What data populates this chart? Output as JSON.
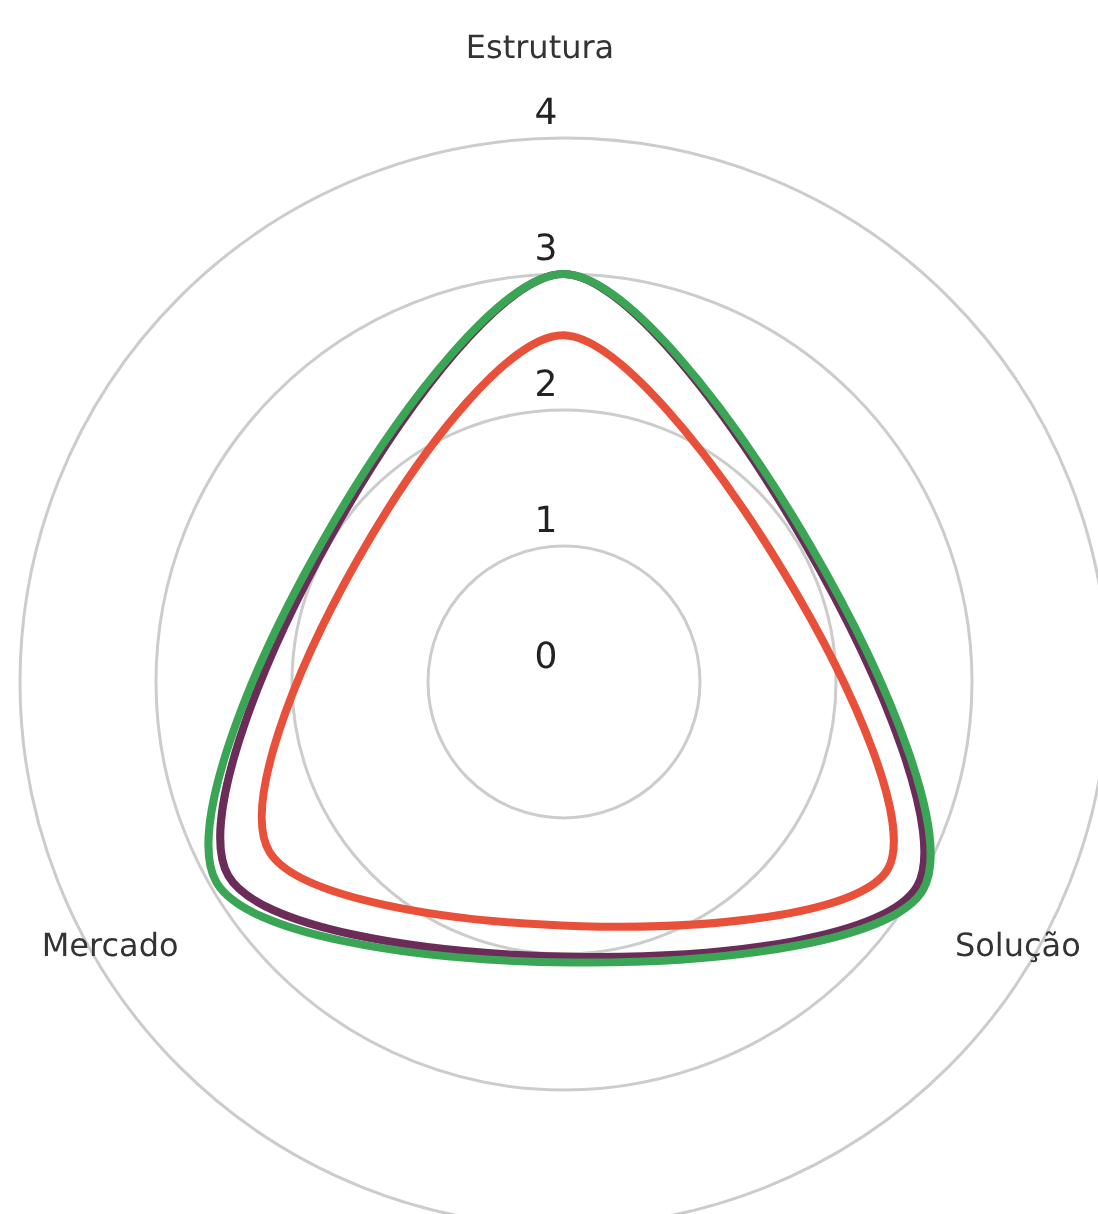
{
  "chart_data": {
    "type": "radar",
    "categories": [
      "Estrutura",
      "Solução",
      "Mercado"
    ],
    "ylim": [
      0,
      4
    ],
    "yticks": [
      0,
      1,
      2,
      3,
      4
    ],
    "grid": true,
    "series": [
      {
        "color": "#6b2c5a",
        "values": [
          3,
          3,
          2.85
        ]
      },
      {
        "color": "#3aa655",
        "values": [
          3,
          3.05,
          2.95
        ]
      },
      {
        "color": "#e8503a",
        "values": [
          2.55,
          2.75,
          2.5
        ]
      }
    ]
  }
}
